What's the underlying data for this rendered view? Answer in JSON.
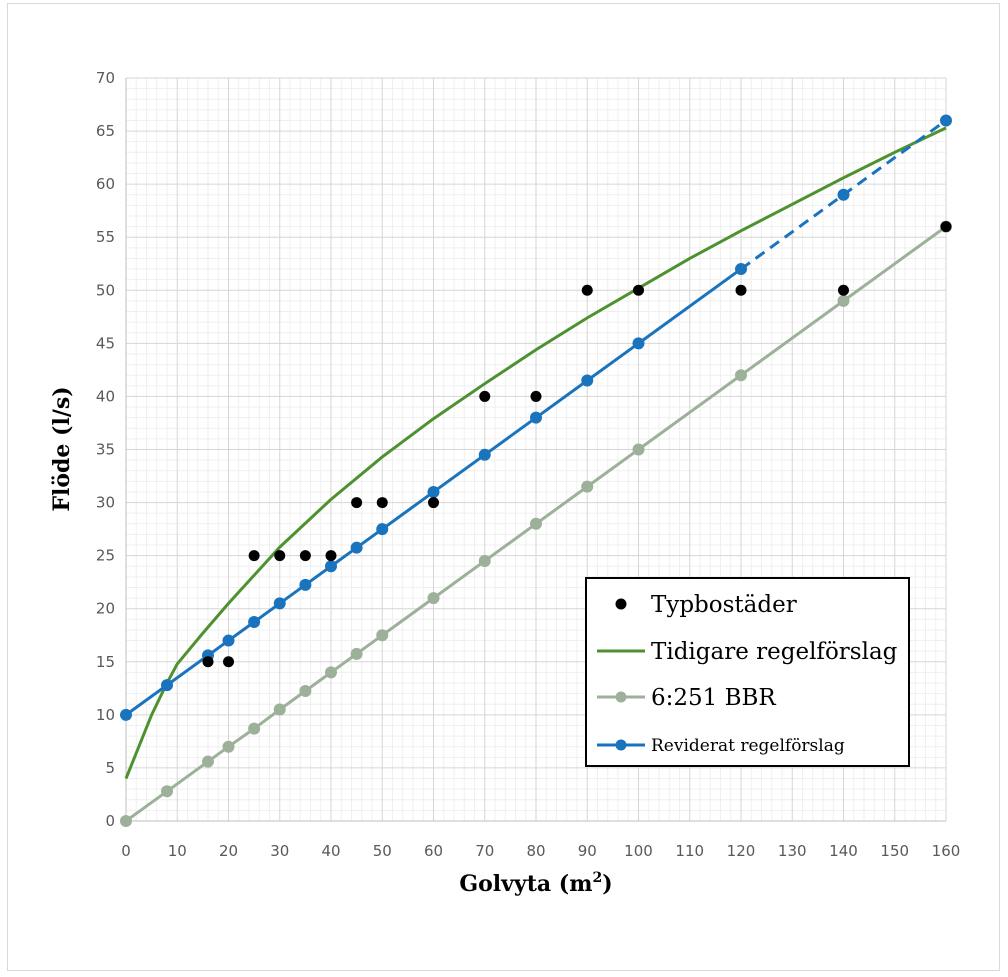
{
  "chart_data": {
    "type": "line",
    "xlabel": "Golvyta (m",
    "xlabel_sup": "2",
    "xlabel_end": ")",
    "ylabel": "Flöde (l/s)",
    "xlim": [
      0,
      160
    ],
    "ylim": [
      0,
      70
    ],
    "x_ticks": [
      "0",
      "10",
      "20",
      "30",
      "40",
      "50",
      "60",
      "70",
      "80",
      "90",
      "100",
      "110",
      "120",
      "130",
      "140",
      "150",
      "160"
    ],
    "y_ticks": [
      "0",
      "5",
      "10",
      "15",
      "20",
      "25",
      "30",
      "35",
      "40",
      "45",
      "50",
      "55",
      "60",
      "65",
      "70"
    ],
    "grid": true,
    "legend_position": "bottom-right",
    "series": [
      {
        "name": "Typbostäder",
        "style": "markers",
        "color": "#000000",
        "x": [
          16,
          20,
          25,
          30,
          35,
          40,
          45,
          50,
          60,
          70,
          80,
          90,
          100,
          120,
          140,
          160
        ],
        "y": [
          15,
          15,
          25,
          25,
          25,
          25,
          30,
          30,
          30,
          40,
          40,
          50,
          50,
          50,
          50,
          56
        ]
      },
      {
        "name": "Tidigare regelförslag",
        "style": "line",
        "color": "#4e9130",
        "x": [
          0,
          5,
          8,
          10,
          15,
          20,
          30,
          40,
          50,
          60,
          70,
          80,
          90,
          100,
          110,
          120,
          130,
          140,
          150,
          160
        ],
        "y": [
          4.0,
          10.0,
          13.0,
          14.8,
          17.7,
          20.5,
          25.8,
          30.3,
          34.3,
          37.9,
          41.2,
          44.4,
          47.4,
          50.2,
          53.0,
          55.6,
          58.1,
          60.6,
          63.0,
          65.3
        ]
      },
      {
        "name": "6:251 BBR",
        "style": "line-markers",
        "color": "#9db09a",
        "x": [
          0,
          8,
          16,
          20,
          25,
          30,
          35,
          40,
          45,
          50,
          60,
          70,
          80,
          90,
          100,
          120,
          140,
          160
        ],
        "y": [
          0,
          2.8,
          5.6,
          7.0,
          8.7,
          10.5,
          12.25,
          14.0,
          15.75,
          17.5,
          21.0,
          24.5,
          28.0,
          31.5,
          35.0,
          42.0,
          49.0,
          56.0
        ]
      },
      {
        "name": "Reviderat regelförslag",
        "style": "line-markers",
        "color": "#1a73bd",
        "dashed_from_x": 120,
        "x": [
          0,
          8,
          16,
          20,
          25,
          30,
          35,
          40,
          45,
          50,
          60,
          70,
          80,
          90,
          100,
          120,
          140,
          160
        ],
        "y": [
          10.0,
          12.8,
          15.6,
          17.0,
          18.75,
          20.5,
          22.25,
          24.0,
          25.75,
          27.5,
          31.0,
          34.5,
          38.0,
          41.5,
          45.0,
          52.0,
          59.0,
          66.0
        ]
      }
    ]
  }
}
